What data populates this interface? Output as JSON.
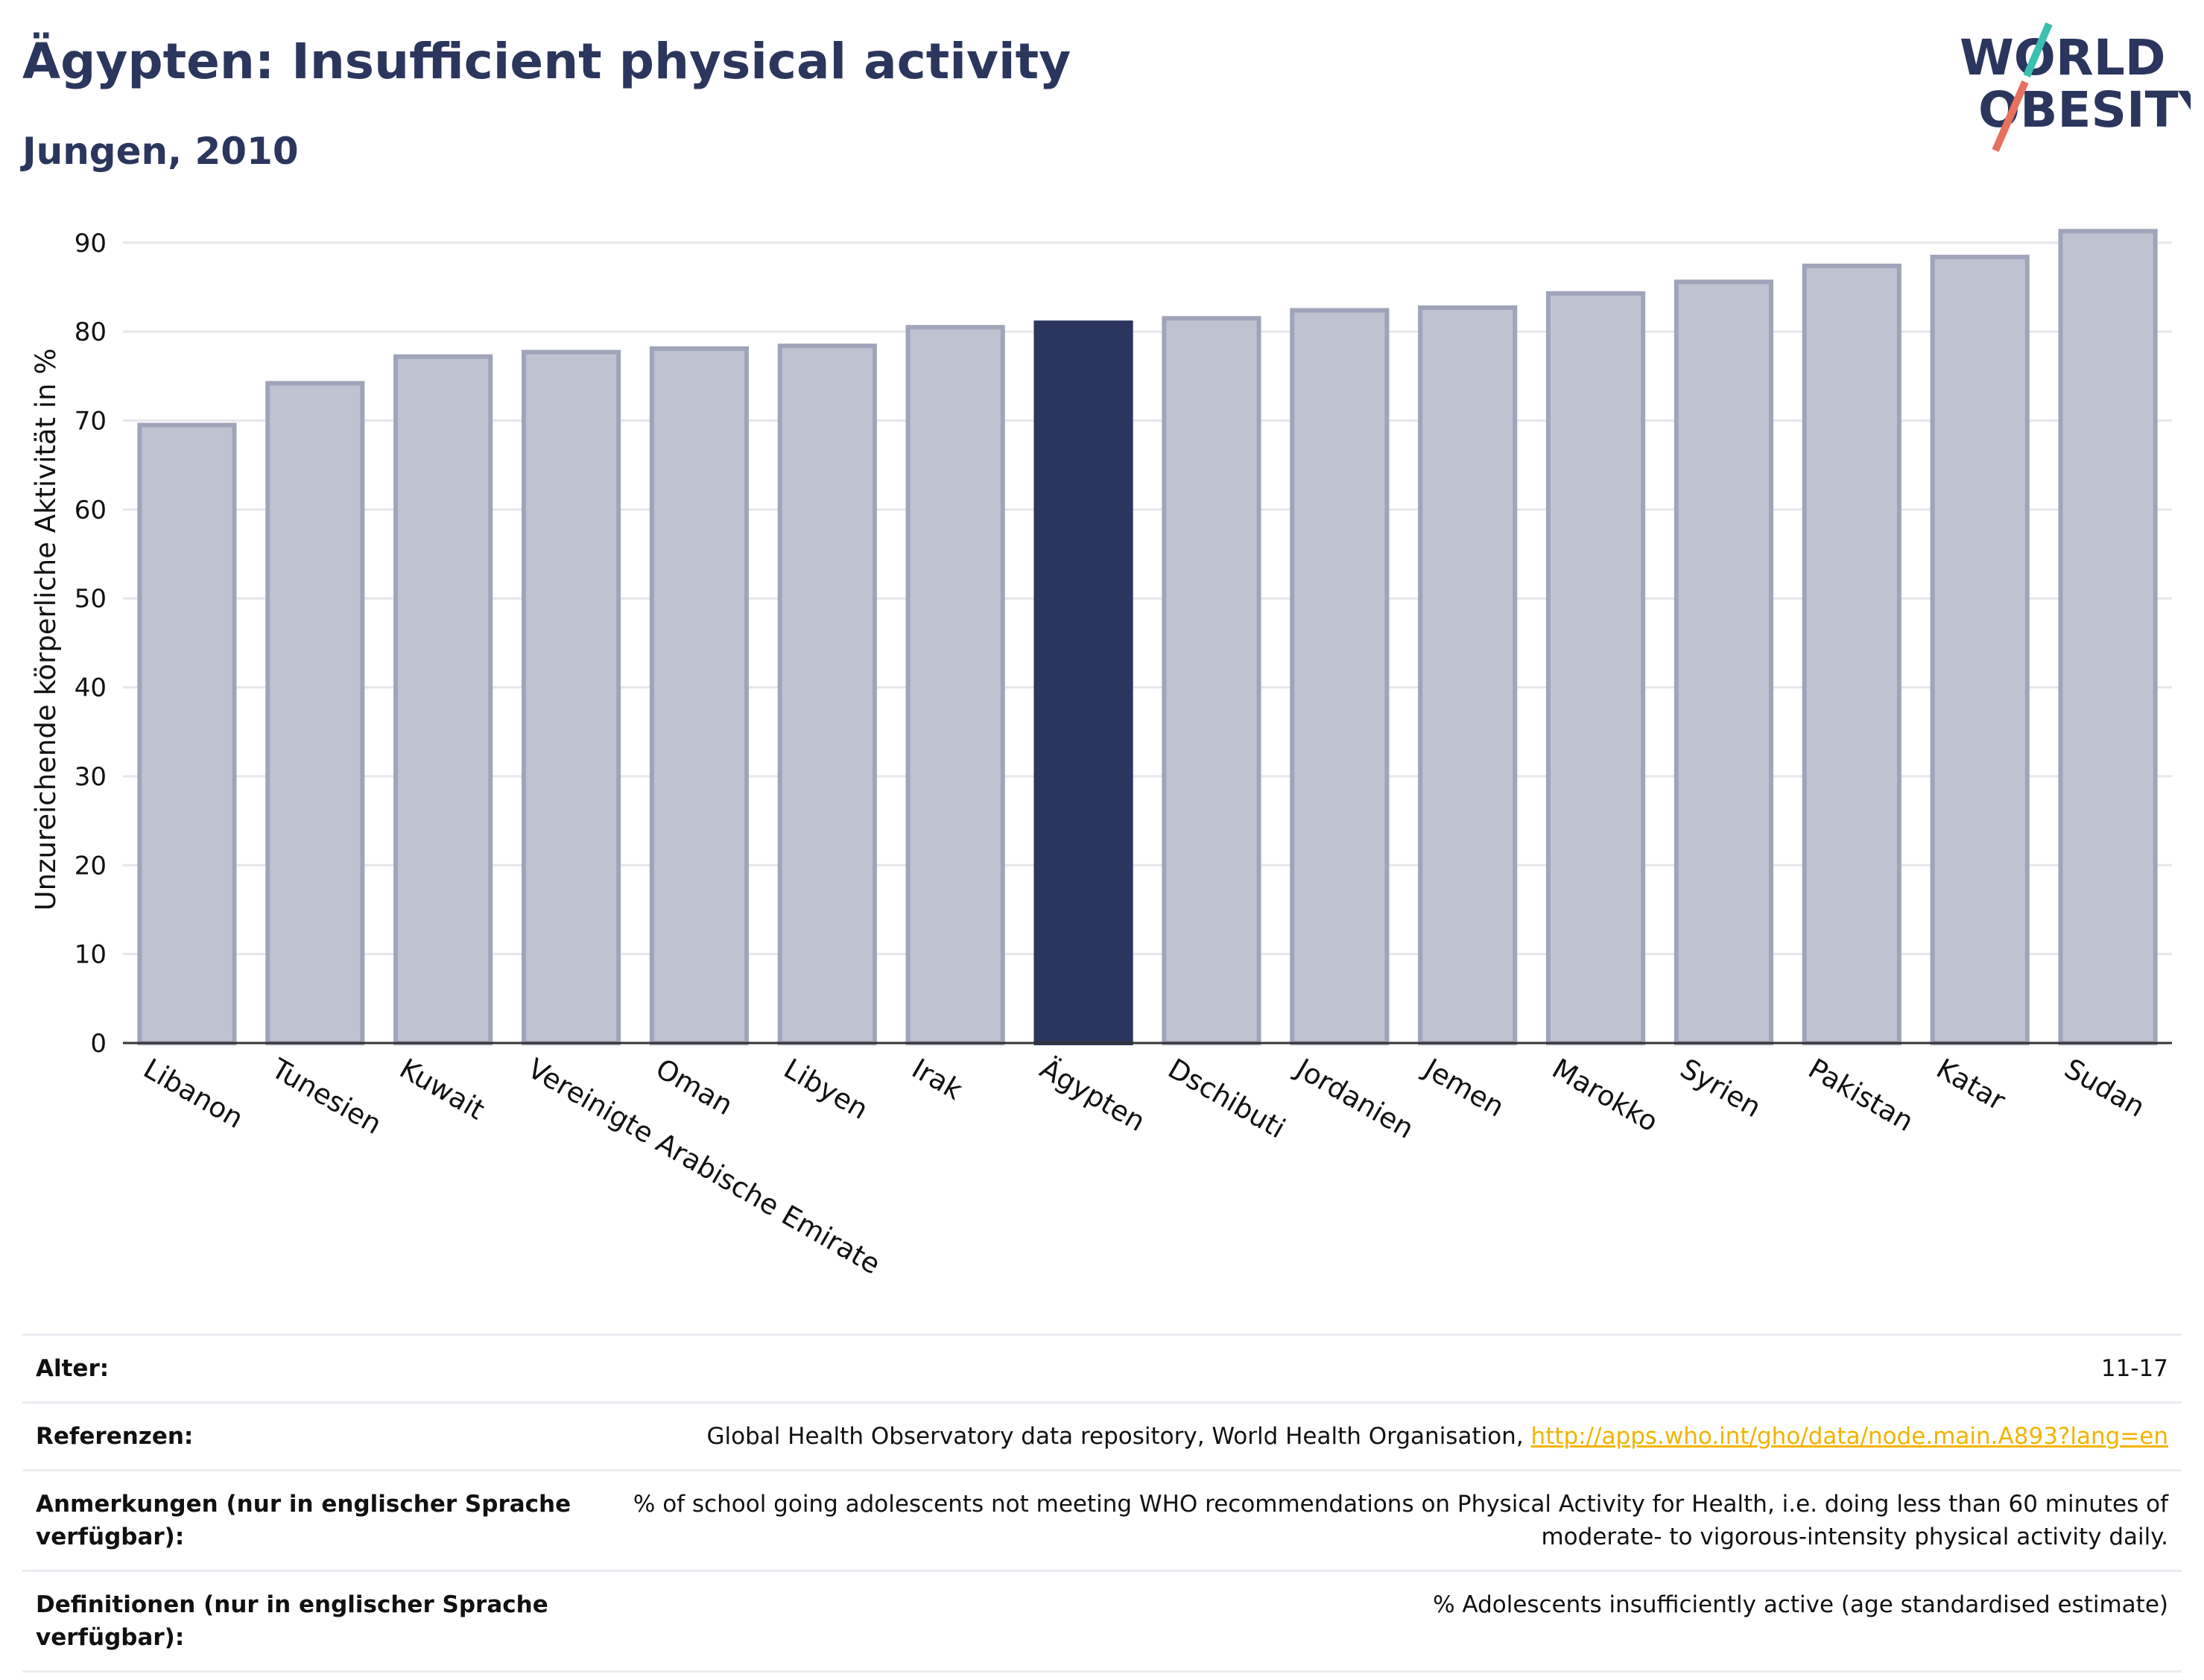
{
  "header": {
    "title": "Ägypten: Insufficient physical activity",
    "subtitle": "Jungen, 2010"
  },
  "logo": {
    "line1": "WORLD",
    "line2": "OBESITY",
    "accent_teal": "#3bbfb0",
    "accent_red": "#e8705e"
  },
  "chart_data": {
    "type": "bar",
    "ylabel": "Unzureichende körperliche Aktivität in %",
    "ylim": [
      0,
      93
    ],
    "yticks": [
      0,
      10,
      20,
      30,
      40,
      50,
      60,
      70,
      80,
      90
    ],
    "grid": true,
    "categories": [
      "Libanon",
      "Tunesien",
      "Kuwait",
      "Vereinigte Arabische Emirate",
      "Oman",
      "Libyen",
      "Irak",
      "Ägypten",
      "Dschibuti",
      "Jordanien",
      "Jemen",
      "Marokko",
      "Syrien",
      "Pakistan",
      "Katar",
      "Sudan"
    ],
    "values": [
      69.5,
      74.2,
      77.2,
      77.7,
      78.1,
      78.4,
      80.5,
      81.0,
      81.5,
      82.4,
      82.7,
      84.3,
      85.6,
      87.4,
      88.4,
      91.3
    ],
    "highlight": "Ägypten",
    "colors": {
      "bar": "#bfc2d0",
      "bar_border": "#9fa4bb",
      "highlight": "#2b365e"
    }
  },
  "meta": {
    "age_label": "Alter:",
    "age_value": "11-17",
    "ref_label": "Referenzen:",
    "ref_text": "Global Health Observatory data repository, World Health Organisation, ",
    "ref_link": "http://apps.who.int/gho/data/node.main.A893?lang=en",
    "notes_label": "Anmerkungen (nur in englischer Sprache verfügbar):",
    "notes_value": "% of school going adolescents not meeting WHO recommendations on Physical Activity for Health, i.e. doing less than 60 minutes of moderate- to vigorous-intensity physical activity daily.",
    "def_label": "Definitionen (nur in englischer Sprache verfügbar):",
    "def_value": "% Adolescents insufficiently active (age standardised estimate)"
  }
}
